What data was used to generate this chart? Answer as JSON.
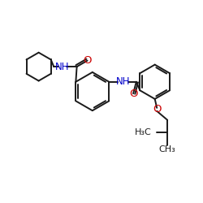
{
  "bg_color": "#ffffff",
  "bond_color": "#1a1a1a",
  "N_color": "#0000cc",
  "O_color": "#cc0000",
  "font_size_atom": 8.5,
  "line_width": 1.4,
  "figsize": [
    2.5,
    2.5
  ],
  "dpi": 100,
  "xlim": [
    0,
    10
  ],
  "ylim": [
    0,
    10
  ]
}
